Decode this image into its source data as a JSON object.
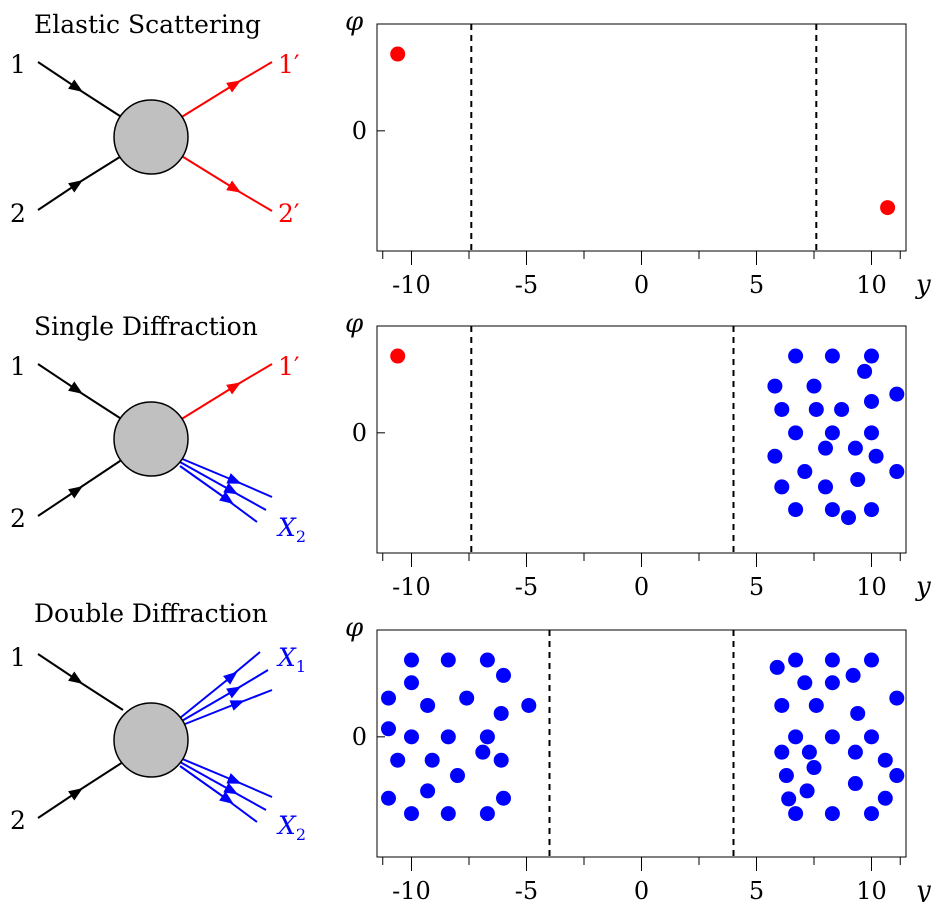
{
  "colors": {
    "incoming": "#000000",
    "elastic": "#ff0000",
    "diffractive": "#0000ff",
    "blob": "#c0c0c0",
    "gap_line": "#000000"
  },
  "panels": [
    {
      "title": "Elastic Scattering",
      "labels": {
        "in1": "1",
        "in2": "2",
        "out_upper": "1′",
        "out_lower": "2′"
      }
    },
    {
      "title": "Single Diffraction",
      "labels": {
        "in1": "1",
        "in2": "2",
        "out_upper": "1′",
        "out_lower": "X",
        "out_lower_sub": "2"
      }
    },
    {
      "title": "Double Diffraction",
      "labels": {
        "in1": "1",
        "in2": "2",
        "out_upper": "X",
        "out_upper_sub": "1",
        "out_lower": "X",
        "out_lower_sub": "2"
      }
    }
  ],
  "chart_data": [
    {
      "type": "scatter",
      "ylabel": "φ",
      "xlabel": "y",
      "xlim": [
        -11.5,
        11.5
      ],
      "ylim": [
        -1.8,
        1.6
      ],
      "x_ticks": [
        -10,
        -5,
        0,
        5,
        10
      ],
      "x_tick_labels": [
        "-10",
        "-5",
        "0",
        "5",
        "10"
      ],
      "y_ticks": [
        0
      ],
      "y_tick_labels": [
        "0"
      ],
      "gap_lines": [
        -7.4,
        7.6
      ],
      "series": [
        {
          "color": "#ff0000",
          "points": [
            [
              -10.6,
              1.15
            ],
            [
              10.7,
              -1.15
            ]
          ]
        }
      ]
    },
    {
      "type": "scatter",
      "ylabel": "φ",
      "xlabel": "y",
      "xlim": [
        -11.5,
        11.5
      ],
      "ylim": [
        -1.8,
        1.6
      ],
      "x_ticks": [
        -10,
        -5,
        0,
        5,
        10
      ],
      "x_tick_labels": [
        "-10",
        "-5",
        "0",
        "5",
        "10"
      ],
      "y_ticks": [
        0
      ],
      "y_tick_labels": [
        "0"
      ],
      "gap_lines": [
        -7.4,
        4.0
      ],
      "series": [
        {
          "color": "#ff0000",
          "points": [
            [
              -10.6,
              1.15
            ]
          ]
        },
        {
          "color": "#0000ff",
          "points": [
            [
              6.7,
              1.15
            ],
            [
              8.3,
              1.15
            ],
            [
              10.0,
              1.15
            ],
            [
              5.8,
              0.7
            ],
            [
              7.5,
              0.7
            ],
            [
              9.7,
              0.92
            ],
            [
              6.1,
              0.35
            ],
            [
              7.6,
              0.35
            ],
            [
              8.7,
              0.35
            ],
            [
              10.0,
              0.47
            ],
            [
              11.1,
              0.58
            ],
            [
              6.7,
              0.0
            ],
            [
              8.3,
              0.0
            ],
            [
              10.0,
              0.0
            ],
            [
              5.8,
              -0.35
            ],
            [
              8.0,
              -0.23
            ],
            [
              9.3,
              -0.23
            ],
            [
              10.2,
              -0.35
            ],
            [
              7.1,
              -0.58
            ],
            [
              8.0,
              -0.81
            ],
            [
              9.4,
              -0.7
            ],
            [
              11.1,
              -0.58
            ],
            [
              6.1,
              -0.81
            ],
            [
              6.7,
              -1.15
            ],
            [
              8.3,
              -1.15
            ],
            [
              9.0,
              -1.27
            ],
            [
              10.0,
              -1.15
            ]
          ]
        }
      ]
    },
    {
      "type": "scatter",
      "ylabel": "φ",
      "xlabel": "y",
      "xlim": [
        -11.5,
        11.5
      ],
      "ylim": [
        -1.8,
        1.6
      ],
      "x_ticks": [
        -10,
        -5,
        0,
        5,
        10
      ],
      "x_tick_labels": [
        "-10",
        "-5",
        "0",
        "5",
        "10"
      ],
      "y_ticks": [
        0
      ],
      "y_tick_labels": [
        "0"
      ],
      "gap_lines": [
        -4.0,
        4.0
      ],
      "series": [
        {
          "color": "#0000ff",
          "points": [
            [
              -10.0,
              1.15
            ],
            [
              -8.4,
              1.15
            ],
            [
              -6.7,
              1.15
            ],
            [
              -10.0,
              0.81
            ],
            [
              -6.0,
              0.92
            ],
            [
              -11.0,
              0.58
            ],
            [
              -7.6,
              0.58
            ],
            [
              -9.3,
              0.47
            ],
            [
              -4.9,
              0.47
            ],
            [
              -6.1,
              0.35
            ],
            [
              -11.0,
              0.12
            ],
            [
              -10.0,
              0.0
            ],
            [
              -8.4,
              0.0
            ],
            [
              -6.7,
              0.0
            ],
            [
              -6.9,
              -0.23
            ],
            [
              -10.6,
              -0.35
            ],
            [
              -9.1,
              -0.35
            ],
            [
              -6.1,
              -0.35
            ],
            [
              -8.0,
              -0.58
            ],
            [
              -9.3,
              -0.81
            ],
            [
              -11.0,
              -0.92
            ],
            [
              -6.0,
              -0.92
            ],
            [
              -10.0,
              -1.15
            ],
            [
              -8.4,
              -1.15
            ],
            [
              -6.7,
              -1.15
            ],
            [
              6.7,
              1.15
            ],
            [
              8.3,
              1.15
            ],
            [
              10.0,
              1.15
            ],
            [
              5.9,
              1.04
            ],
            [
              7.1,
              0.81
            ],
            [
              8.3,
              0.81
            ],
            [
              9.2,
              0.92
            ],
            [
              6.1,
              0.47
            ],
            [
              7.6,
              0.47
            ],
            [
              9.4,
              0.35
            ],
            [
              11.1,
              0.58
            ],
            [
              6.7,
              0.0
            ],
            [
              8.3,
              0.0
            ],
            [
              10.0,
              0.0
            ],
            [
              6.1,
              -0.23
            ],
            [
              7.3,
              -0.23
            ],
            [
              9.3,
              -0.23
            ],
            [
              10.6,
              -0.35
            ],
            [
              6.3,
              -0.58
            ],
            [
              7.5,
              -0.46
            ],
            [
              11.1,
              -0.58
            ],
            [
              6.4,
              -0.93
            ],
            [
              7.2,
              -0.81
            ],
            [
              9.3,
              -0.7
            ],
            [
              10.6,
              -0.92
            ],
            [
              6.7,
              -1.15
            ],
            [
              8.3,
              -1.15
            ],
            [
              10.0,
              -1.15
            ]
          ]
        }
      ]
    }
  ]
}
